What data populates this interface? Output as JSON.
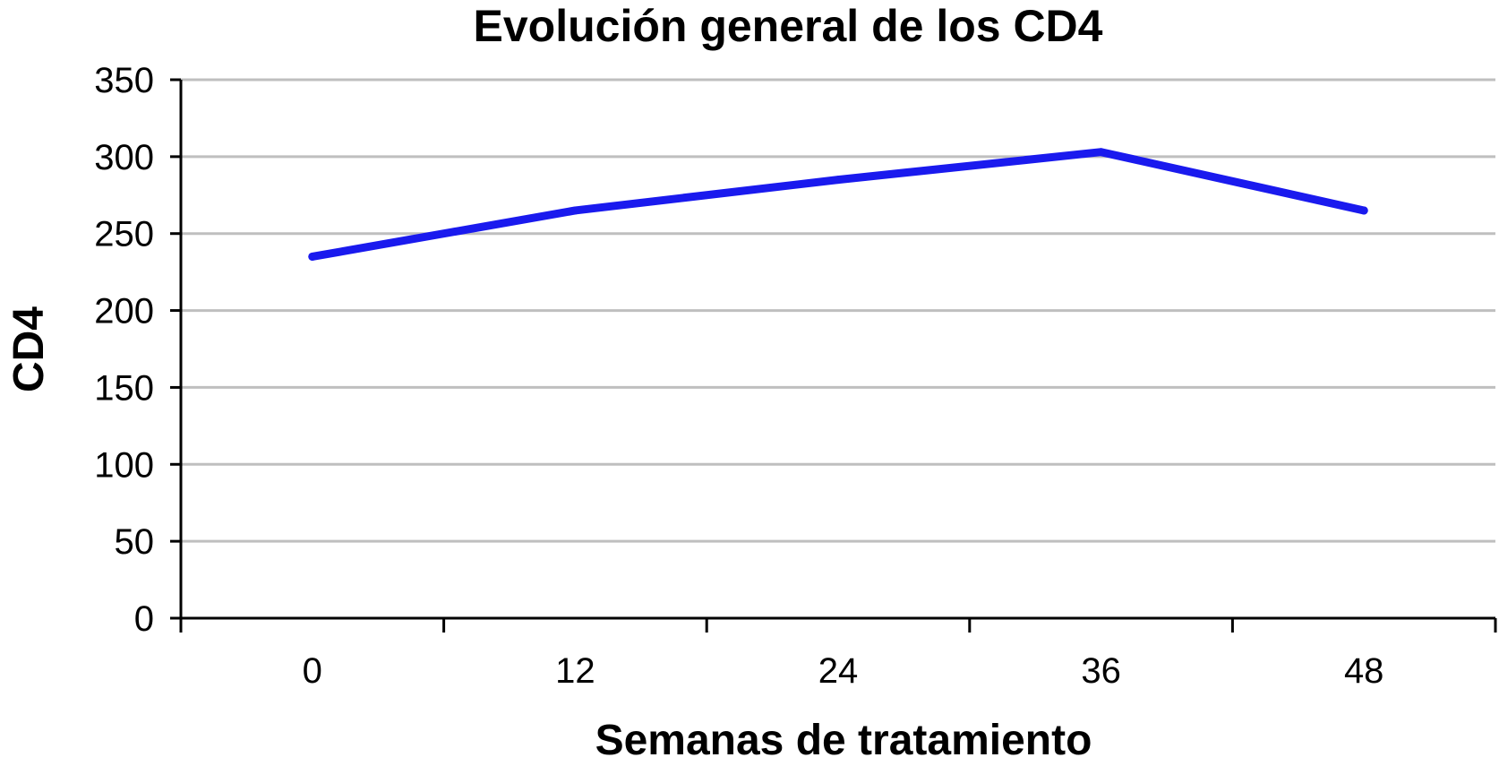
{
  "chart_data": {
    "type": "line",
    "title": "Evolución general de los CD4",
    "xlabel": "Semanas de tratamiento",
    "ylabel": "CD4",
    "categories": [
      "0",
      "12",
      "24",
      "36",
      "48"
    ],
    "series": [
      {
        "values": [
          235,
          265,
          285,
          303,
          265
        ]
      }
    ],
    "ylim": [
      0,
      350
    ],
    "yticks": [
      0,
      50,
      100,
      150,
      200,
      250,
      300,
      350
    ],
    "grid": true,
    "legend": "none",
    "colors": {
      "line": "#1a1aee",
      "grid": "#bfbfbf",
      "axis": "#000000"
    }
  }
}
